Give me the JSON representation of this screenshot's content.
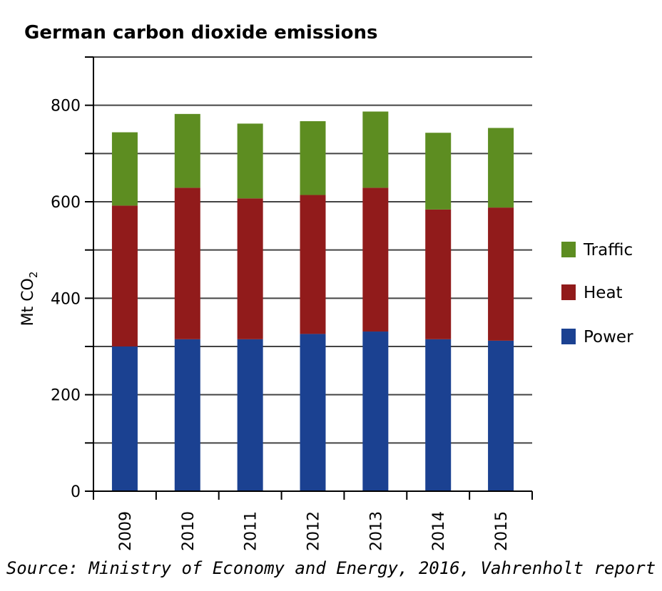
{
  "chart_data": {
    "type": "bar",
    "stacked": true,
    "title": "German carbon dioxide emissions",
    "ylabel_main": "Mt CO",
    "ylabel_sub": "2",
    "ylim": [
      0,
      900
    ],
    "yticks": [
      0,
      200,
      400,
      600,
      800
    ],
    "grid": true,
    "legend_position": "right",
    "categories": [
      "2009",
      "2010",
      "2011",
      "2012",
      "2013",
      "2014",
      "2015"
    ],
    "series": [
      {
        "name": "Power",
        "color": "#1b4191",
        "values": [
          300,
          315,
          315,
          326,
          331,
          315,
          312
        ]
      },
      {
        "name": "Heat",
        "color": "#911b1b",
        "values": [
          292,
          314,
          292,
          288,
          298,
          269,
          276
        ]
      },
      {
        "name": "Traffic",
        "color": "#5d8d21",
        "values": [
          152,
          153,
          155,
          153,
          158,
          159,
          165
        ]
      }
    ],
    "legend_order": [
      "Traffic",
      "Heat",
      "Power"
    ],
    "source": "Source: Ministry of Economy and Energy, 2016, Vahrenholt report"
  }
}
